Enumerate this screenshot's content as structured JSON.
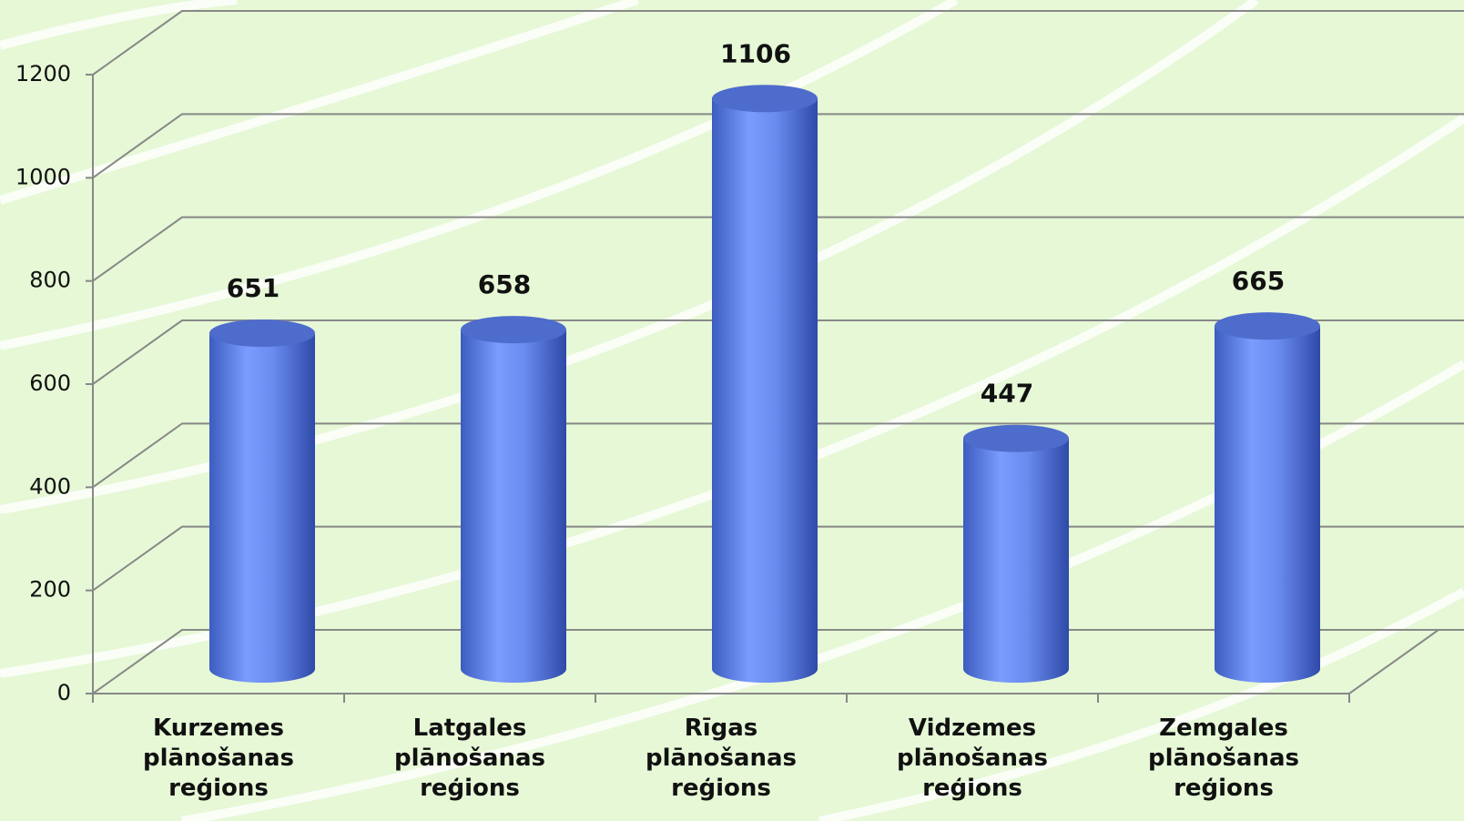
{
  "chart_data": {
    "type": "bar",
    "categories": [
      "Kurzemes plānošanas reģions",
      "Latgales plānošanas reģions",
      "Rīgas plānošanas reģions",
      "Vidzemes plānošanas reģions",
      "Zemgales plānošanas reģions"
    ],
    "values": [
      651,
      658,
      1106,
      447,
      665
    ],
    "color": "#6f91f0",
    "ylim": [
      0,
      1200
    ],
    "yticks": [
      0,
      200,
      400,
      600,
      800,
      1000,
      1200
    ],
    "grid": true
  }
}
